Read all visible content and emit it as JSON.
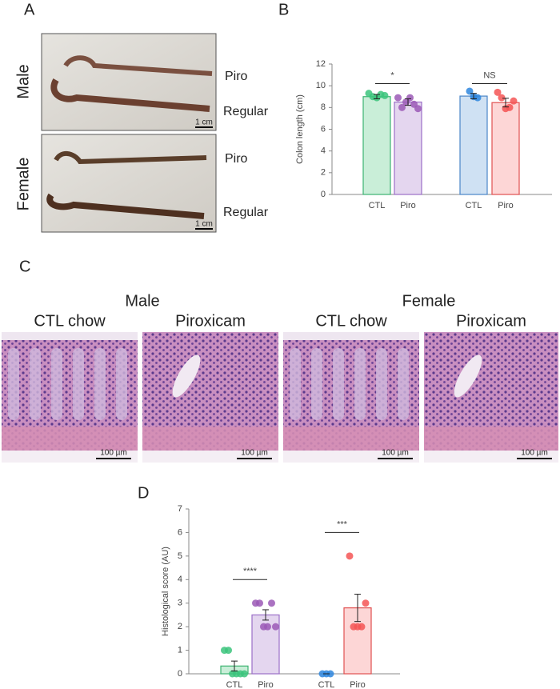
{
  "panels": {
    "A": {
      "label": "A",
      "rows": [
        "Male",
        "Female"
      ],
      "samples": [
        "Piro",
        "Regular",
        "Piro",
        "Regular"
      ],
      "scale_bars": [
        "1 cm",
        "1 cm"
      ]
    },
    "B": {
      "label": "B"
    },
    "C": {
      "label": "C",
      "groups": [
        "Male",
        "Female"
      ],
      "columns": [
        "CTL chow",
        "Piroxicam",
        "CTL chow",
        "Piroxicam"
      ],
      "scale_bars": [
        "100 µm",
        "100 µm",
        "100 µm",
        "100 µm"
      ]
    },
    "D": {
      "label": "D"
    }
  },
  "chart_data": [
    {
      "type": "bar",
      "ylabel": "Colon length (cm)",
      "categories": [
        "CTL",
        "Piro",
        "CTL",
        "Piro"
      ],
      "values": [
        9.0,
        8.5,
        9.05,
        8.45
      ],
      "errors": [
        0.2,
        0.3,
        0.25,
        0.4
      ],
      "colors": [
        "#c9eed8",
        "#e4d6ef",
        "#cfe1f3",
        "#fdd6d6"
      ],
      "edge_colors": [
        "#3cb371",
        "#9b6fc7",
        "#4a86c8",
        "#e05050"
      ],
      "point_colors": [
        "#3cc47c",
        "#9b59b6",
        "#2e86de",
        "#f55555"
      ],
      "points": [
        [
          9.3,
          9.0,
          8.9,
          9.2,
          9.1
        ],
        [
          8.9,
          8.0,
          8.5,
          8.9,
          8.3,
          7.9
        ],
        [
          9.5,
          9.0,
          8.9
        ],
        [
          9.4,
          8.9,
          7.9,
          8.0,
          8.6
        ]
      ],
      "annotations": [
        {
          "text": "*",
          "y": 10.2
        },
        {
          "text": "NS",
          "y": 10.2
        }
      ],
      "ylim": [
        0,
        12
      ],
      "yticks": [
        0,
        2,
        4,
        6,
        8,
        10,
        12
      ]
    },
    {
      "type": "bar",
      "ylabel": "Histological score (AU)",
      "categories": [
        "CTL",
        "Piro",
        "CTL",
        "Piro"
      ],
      "values": [
        0.33,
        2.5,
        0,
        2.8
      ],
      "errors": [
        0.21,
        0.22,
        0,
        0.58
      ],
      "colors": [
        "#c9eed8",
        "#e4d6ef",
        "#cfe1f3",
        "#fdd6d6"
      ],
      "edge_colors": [
        "#3cb371",
        "#9b6fc7",
        "#4a86c8",
        "#e05050"
      ],
      "point_colors": [
        "#3cc47c",
        "#9b59b6",
        "#2e86de",
        "#f55555"
      ],
      "points": [
        [
          1,
          1,
          0,
          0,
          0,
          0
        ],
        [
          3,
          3,
          2,
          2,
          3,
          2
        ],
        [
          0,
          0,
          0
        ],
        [
          5,
          2,
          2,
          2,
          3
        ]
      ],
      "annotations": [
        {
          "text": "****",
          "y": 4.0
        },
        {
          "text": "***",
          "y": 6.0
        }
      ],
      "ylim": [
        0,
        7
      ],
      "yticks": [
        0,
        1,
        2,
        3,
        4,
        5,
        6,
        7
      ]
    }
  ]
}
